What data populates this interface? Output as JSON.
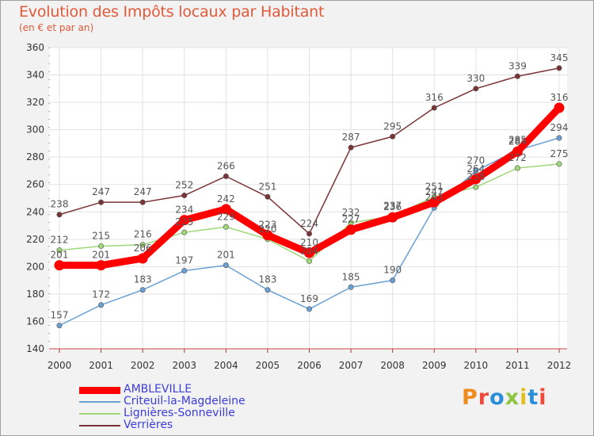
{
  "header": {
    "title": "Evolution des Impôts locaux par Habitant",
    "subtitle": "(en € et par an)"
  },
  "logo": {
    "text": "Proxiti",
    "colors": [
      "#f08c1e",
      "#f04a3a",
      "#2a8fd8",
      "#8cc63e",
      "#e0c020",
      "#2a8fd8",
      "#f04a3a"
    ]
  },
  "chart_data": {
    "type": "line",
    "title": "Evolution des Impôts locaux par Habitant",
    "subtitle": "(en € et par an)",
    "xlabel": "",
    "ylabel": "",
    "ylim": [
      140,
      360
    ],
    "yticks": [
      140,
      160,
      180,
      200,
      220,
      240,
      260,
      280,
      300,
      320,
      340,
      360
    ],
    "x": [
      "2000",
      "2001",
      "2002",
      "2003",
      "2004",
      "2005",
      "2006",
      "2007",
      "2008",
      "2009",
      "2010",
      "2011",
      "2012"
    ],
    "grid": true,
    "legend_position": "bottom-left",
    "series": [
      {
        "name": "AMBLEVILLE",
        "color": "#ff0000",
        "emphasis": true,
        "values": [
          201,
          201,
          206,
          234,
          242,
          223,
          210,
          227,
          236,
          247,
          264,
          284,
          316
        ]
      },
      {
        "name": "Criteuil-la-Magdeleine",
        "color": "#6aa0d4",
        "values": [
          157,
          172,
          183,
          197,
          201,
          183,
          169,
          185,
          190,
          243,
          270,
          285,
          294
        ]
      },
      {
        "name": "Lignières-Sonneville",
        "color": "#9fd878",
        "values": [
          212,
          215,
          216,
          225,
          229,
          220,
          204,
          232,
          237,
          251,
          258,
          272,
          275
        ]
      },
      {
        "name": "Verrières",
        "color": "#7a3436",
        "values": [
          238,
          247,
          247,
          252,
          266,
          251,
          224,
          287,
          295,
          316,
          330,
          339,
          345
        ]
      }
    ]
  }
}
